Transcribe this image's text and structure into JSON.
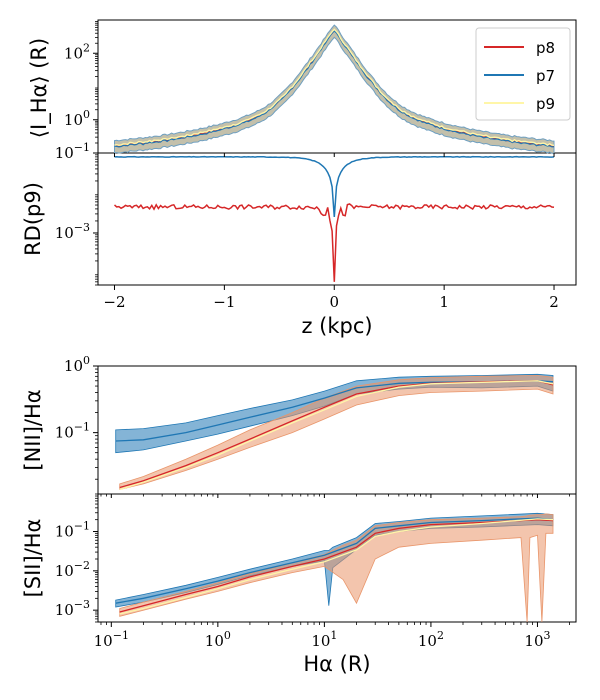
{
  "chart_data": [
    {
      "id": "top",
      "type": "line",
      "ylabel": "⟨I_Hα⟩ (R)",
      "yscale": "log",
      "ylim": [
        0.1,
        1000
      ],
      "xlim": [
        -2.15,
        2.2
      ],
      "xlabel": "z (kpc)",
      "yticks": [
        {
          "value": 0.1,
          "base": "10",
          "exp": "−1"
        },
        {
          "value": 1,
          "base": "10",
          "exp": "0"
        },
        {
          "value": 100,
          "base": "10",
          "exp": "2"
        }
      ],
      "legend": {
        "position": "top-right",
        "entries": [
          "p8",
          "p7",
          "p9"
        ]
      },
      "series": [
        {
          "name": "p8",
          "color": "#d62728",
          "peak": 500,
          "wing": 0.22
        },
        {
          "name": "p7",
          "color": "#1f77b4",
          "peak": 480,
          "wing": 0.2
        },
        {
          "name": "p9",
          "color": "#fff6a8",
          "peak": 510,
          "wing": 0.25
        }
      ],
      "band": {
        "color": "#b9b59c",
        "edge": "#6f9fc0",
        "low": 0.62,
        "high": 1.45
      }
    },
    {
      "id": "rd",
      "type": "line",
      "ylabel": "RD(p9)",
      "yscale": "log",
      "ylim": [
        5e-05,
        0.1
      ],
      "xlim": [
        -2.15,
        2.2
      ],
      "xlabel": "z (kpc)",
      "xticks": [
        -2,
        -1,
        0,
        1,
        2
      ],
      "xticklabels": [
        "−2",
        "−1",
        "0",
        "1",
        "2"
      ],
      "yticks": [
        {
          "value": 0.001,
          "base": "10",
          "exp": "−3"
        }
      ],
      "series": [
        {
          "name": "p7",
          "color": "#1f77b4",
          "level": 0.08,
          "dip": 0.0025
        },
        {
          "name": "p8",
          "color": "#d62728",
          "level": 0.0045,
          "dip": 7e-05
        }
      ]
    },
    {
      "id": "nii",
      "type": "line",
      "ylabel": "[NII]/Hα",
      "yscale": "log",
      "ylim": [
        0.012,
        1.0
      ],
      "xscale": "log",
      "xlim": [
        0.075,
        2300
      ],
      "yticks": [
        {
          "value": 0.1,
          "base": "10",
          "exp": "−1"
        },
        {
          "value": 1,
          "base": "10",
          "exp": "0"
        }
      ],
      "series": [
        {
          "name": "p7",
          "color": "#1f77b4",
          "x": [
            0.11,
            0.2,
            0.5,
            1,
            2,
            5,
            10,
            20,
            50,
            100,
            300,
            1000,
            1400
          ],
          "y": [
            0.075,
            0.078,
            0.1,
            0.13,
            0.17,
            0.24,
            0.33,
            0.47,
            0.55,
            0.57,
            0.58,
            0.6,
            0.58
          ]
        },
        {
          "name": "p8",
          "color": "#d62728",
          "x": [
            0.12,
            0.2,
            0.5,
            1,
            2,
            5,
            10,
            20,
            50,
            100,
            300,
            1000,
            1400
          ],
          "y": [
            0.015,
            0.019,
            0.032,
            0.05,
            0.08,
            0.15,
            0.24,
            0.38,
            0.5,
            0.55,
            0.58,
            0.6,
            0.52
          ]
        },
        {
          "name": "p9",
          "color": "#fff6a8",
          "x": [
            0.12,
            0.2,
            0.5,
            1,
            2,
            5,
            10,
            20,
            50,
            100,
            300,
            1000,
            1400
          ],
          "y": [
            0.014,
            0.018,
            0.03,
            0.046,
            0.075,
            0.14,
            0.22,
            0.35,
            0.48,
            0.54,
            0.57,
            0.6,
            0.54
          ]
        }
      ],
      "bands": [
        {
          "name": "p7",
          "color": "#1f77b4",
          "x": [
            0.11,
            0.2,
            0.5,
            1,
            2,
            5,
            10,
            20,
            50,
            100,
            300,
            1000,
            1400
          ],
          "low": [
            0.05,
            0.055,
            0.075,
            0.095,
            0.125,
            0.18,
            0.25,
            0.38,
            0.45,
            0.48,
            0.47,
            0.5,
            0.42
          ],
          "high": [
            0.11,
            0.115,
            0.14,
            0.18,
            0.23,
            0.31,
            0.42,
            0.6,
            0.68,
            0.7,
            0.72,
            0.75,
            0.72
          ]
        },
        {
          "name": "p8",
          "color": "#e9956a",
          "x": [
            0.12,
            0.2,
            0.5,
            1,
            2,
            5,
            10,
            20,
            50,
            100,
            300,
            1000,
            1400
          ],
          "low": [
            0.014,
            0.017,
            0.027,
            0.04,
            0.06,
            0.1,
            0.16,
            0.26,
            0.36,
            0.4,
            0.42,
            0.45,
            0.38
          ],
          "high": [
            0.017,
            0.022,
            0.04,
            0.065,
            0.11,
            0.2,
            0.33,
            0.5,
            0.62,
            0.67,
            0.7,
            0.72,
            0.68
          ]
        }
      ]
    },
    {
      "id": "sii",
      "type": "line",
      "ylabel": "[SII]/Hα",
      "yscale": "log",
      "ylim": [
        0.0005,
        0.9
      ],
      "xscale": "log",
      "xlim": [
        0.075,
        2300
      ],
      "xlabel": "Hα (R)",
      "xticks": [
        {
          "value": 0.1,
          "base": "10",
          "exp": "−1"
        },
        {
          "value": 1,
          "base": "10",
          "exp": "0"
        },
        {
          "value": 10,
          "base": "10",
          "exp": "1"
        },
        {
          "value": 100,
          "base": "10",
          "exp": "2"
        },
        {
          "value": 1000,
          "base": "10",
          "exp": "3"
        }
      ],
      "yticks": [
        {
          "value": 0.001,
          "base": "10",
          "exp": "−3"
        },
        {
          "value": 0.01,
          "base": "10",
          "exp": "−2"
        },
        {
          "value": 0.1,
          "base": "10",
          "exp": "−1"
        }
      ],
      "series": [
        {
          "name": "p7",
          "color": "#1f77b4",
          "x": [
            0.11,
            0.2,
            0.5,
            1,
            2,
            5,
            10,
            20,
            30,
            50,
            100,
            300,
            1000,
            1400
          ],
          "y": [
            0.0015,
            0.002,
            0.0035,
            0.0055,
            0.009,
            0.016,
            0.025,
            0.05,
            0.12,
            0.14,
            0.17,
            0.19,
            0.22,
            0.2
          ]
        },
        {
          "name": "p8",
          "color": "#d62728",
          "x": [
            0.12,
            0.2,
            0.5,
            1,
            2,
            5,
            10,
            20,
            30,
            50,
            100,
            300,
            1000,
            1400
          ],
          "y": [
            0.0009,
            0.0013,
            0.0025,
            0.004,
            0.007,
            0.013,
            0.02,
            0.04,
            0.09,
            0.12,
            0.15,
            0.17,
            0.2,
            0.19
          ]
        },
        {
          "name": "p9",
          "color": "#fff6a8",
          "x": [
            0.12,
            0.2,
            0.5,
            1,
            2,
            5,
            10,
            20,
            30,
            50,
            100,
            300,
            1000,
            1400
          ],
          "y": [
            0.0008,
            0.0011,
            0.0021,
            0.0035,
            0.006,
            0.011,
            0.017,
            0.034,
            0.075,
            0.1,
            0.13,
            0.16,
            0.21,
            0.2
          ]
        }
      ],
      "bands": [
        {
          "name": "p7",
          "color": "#1f77b4",
          "x": [
            0.11,
            0.2,
            0.5,
            1,
            2,
            5,
            10,
            11,
            12,
            20,
            30,
            50,
            100,
            300,
            1000,
            1400
          ],
          "low": [
            0.0012,
            0.0016,
            0.0028,
            0.0045,
            0.0075,
            0.013,
            0.018,
            0.0013,
            0.012,
            0.035,
            0.08,
            0.1,
            0.12,
            0.13,
            0.15,
            0.14
          ],
          "high": [
            0.0018,
            0.0025,
            0.0043,
            0.0068,
            0.011,
            0.02,
            0.033,
            0.033,
            0.04,
            0.07,
            0.16,
            0.18,
            0.22,
            0.25,
            0.29,
            0.27
          ]
        },
        {
          "name": "p8",
          "color": "#e9956a",
          "x": [
            0.12,
            0.2,
            0.5,
            1,
            2,
            5,
            10,
            15,
            20,
            30,
            50,
            100,
            300,
            700,
            800,
            850,
            1000,
            1100,
            1200,
            1400
          ],
          "low": [
            0.0007,
            0.001,
            0.0019,
            0.003,
            0.005,
            0.009,
            0.013,
            0.006,
            0.0015,
            0.02,
            0.04,
            0.05,
            0.06,
            0.07,
            0.0005,
            0.07,
            0.08,
            0.0005,
            0.09,
            0.09
          ],
          "high": [
            0.0011,
            0.0016,
            0.003,
            0.005,
            0.0085,
            0.016,
            0.026,
            0.045,
            0.06,
            0.14,
            0.17,
            0.2,
            0.22,
            0.24,
            0.25,
            0.26,
            0.27,
            0.27,
            0.28,
            0.27
          ]
        }
      ]
    }
  ]
}
